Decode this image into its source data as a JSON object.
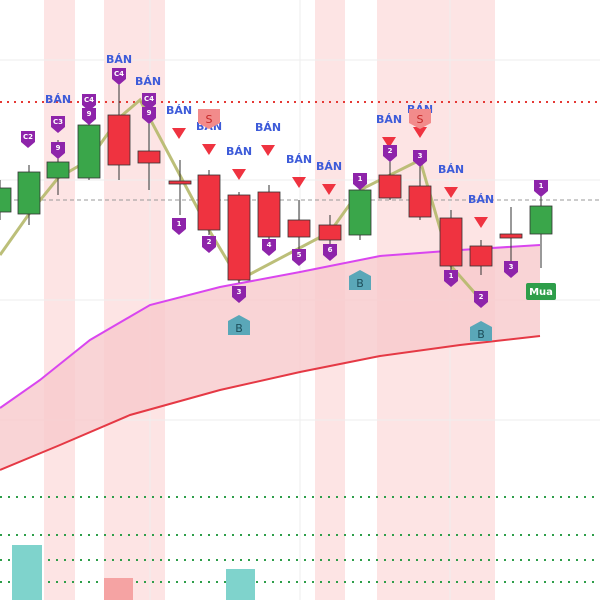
{
  "sell_labels": [
    "BÁN",
    "BÁN",
    "BÁN",
    "BÁN",
    "BÁN",
    "BÁN",
    "BÁN",
    "BÁN",
    "BÁN",
    "BÁN",
    "BÁN",
    "BÁN",
    "BÁN"
  ],
  "count_markers": [
    "C2",
    "C3",
    "9",
    "C4",
    "9",
    "C4",
    "C4",
    "9",
    "1",
    "2",
    "3",
    "4",
    "5",
    "6",
    "1",
    "2",
    "3",
    "1",
    "2",
    "3",
    "1"
  ],
  "signals": [
    "S",
    "S",
    "B",
    "B",
    "B"
  ],
  "buy_label": "Mua"
}
